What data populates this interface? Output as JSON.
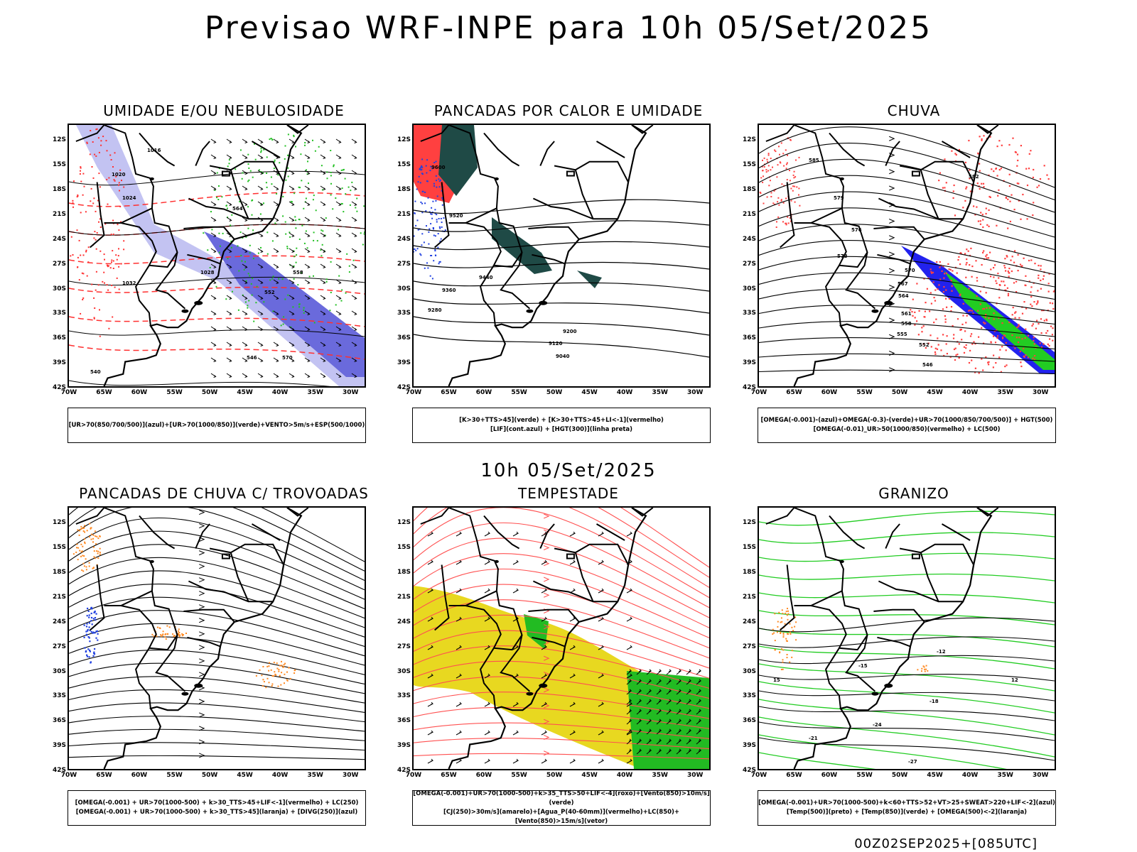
{
  "title": "Previsao WRF-INPE  para 10h 05/Set/2025",
  "mid_title": "10h 05/Set/2025",
  "footer": "00Z02SEP2025+[085UTC]",
  "lat_labels": [
    "12S",
    "15S",
    "18S",
    "21S",
    "24S",
    "27S",
    "30S",
    "33S",
    "36S",
    "39S",
    "42S"
  ],
  "lon_labels": [
    "70W",
    "65W",
    "60W",
    "55W",
    "50W",
    "45W",
    "40W",
    "35W",
    "30W"
  ],
  "panels": [
    {
      "title": "UMIDADE E/OU NEBULOSIDADE",
      "legend": [
        "[UR>70(850/700/500)](azul)+[UR>70(1000/850)](verde)+VENTO>5m/s+ESP(500/1000)"
      ],
      "contour_labels": [
        "1016",
        "1020",
        "1024",
        "1028",
        "1032",
        "570",
        "564",
        "558",
        "552",
        "546",
        "540"
      ]
    },
    {
      "title": "PANCADAS POR CALOR E UMIDADE",
      "legend": [
        "[K>30+TTS>45](verde) + [K>30+TTS>45+LI<-1](vermelho)",
        "[LIF](cont.azul) + [HGT(300)](linha preta)"
      ],
      "contour_labels": [
        "9600",
        "9520",
        "9440",
        "9360",
        "9280",
        "9200",
        "9120",
        "9040"
      ]
    },
    {
      "title": "CHUVA",
      "legend": [
        "[OMEGA(-0.001)-(azul)+OMEGA(-0.3)-(verde)+UR>70(1000/850/700/500)] + HGT(500)",
        "[OMEGA(-0.01)_UR>50(1000/850)(vermelho) + LC(500)"
      ],
      "contour_labels": [
        "585",
        "582",
        "579",
        "576",
        "573",
        "570",
        "567",
        "564",
        "561",
        "558",
        "555",
        "552",
        "546"
      ]
    },
    {
      "title": "PANCADAS DE CHUVA C/ TROVOADAS",
      "legend": [
        "[OMEGA(-0.001) + UR>70(1000-500) + k>30_TTS>45+LIF<-1](vermelho) + LC(250)",
        "[OMEGA(-0.001) + UR>70(1000-500) + k>30_TTS>45](laranja) + [DIVG(250)](azul)"
      ],
      "contour_labels": []
    },
    {
      "title": "TEMPESTADE",
      "legend": [
        "[OMEGA(-0.001)+UR>70(1000-500)+k>35_TTS>50+LIF<-4](roxo)+[Vento(850)>10m/s](verde)",
        "[CJ(250)>30m/s](amarelo)+[Agua_P(40-60mm)](vermelho)+LC(850)+[Vento(850)>15m/s](vetor)"
      ],
      "contour_labels": []
    },
    {
      "title": "GRANIZO",
      "legend": [
        "[OMEGA(-0.001)+UR>70(1000-500)+k<60+TTS>52+VT>25+SWEAT>220+LIF<-2](azul)",
        "[Temp(500)](preto) + [Temp(850)](verde) + [OMEGA(500)<-2](laranja)"
      ],
      "contour_labels": [
        "-12",
        "-15",
        "-18",
        "-21",
        "-24",
        "-27",
        "12",
        "15"
      ]
    }
  ]
}
